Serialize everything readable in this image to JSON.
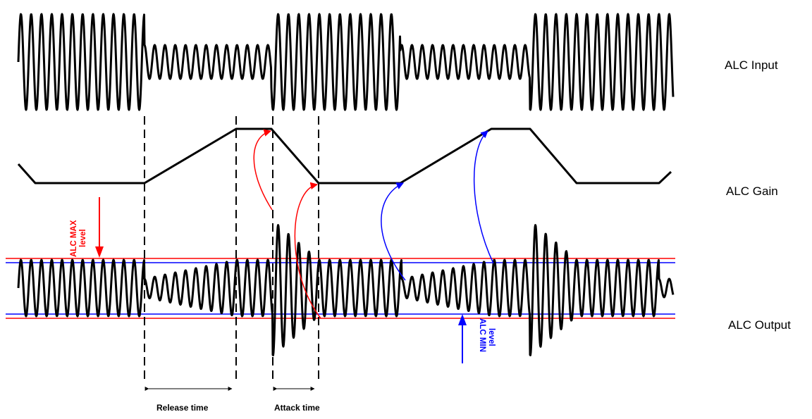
{
  "rows": {
    "input_label": "ALC Input",
    "gain_label": "ALC Gain",
    "output_label": "ALC Output"
  },
  "levels": {
    "max_label_line1": "ALC MAX",
    "max_label_line2": "level",
    "min_label_line1": "ALC MIN",
    "min_label_line2": "level"
  },
  "timings": {
    "release_label": "Release time",
    "attack_label": "Attack time"
  },
  "colors": {
    "waveform": "#000000",
    "max_level": "#ff0000",
    "min_level": "#0000ff",
    "attack_arrows": "#ff0000",
    "release_arrows": "#0000ff"
  }
}
